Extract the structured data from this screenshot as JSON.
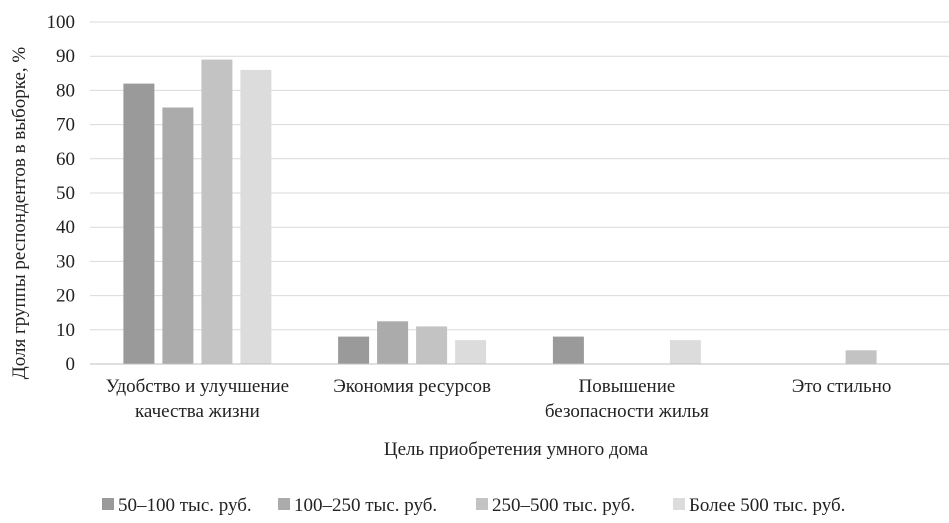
{
  "chart_data": {
    "type": "bar",
    "title": "",
    "xlabel": "Цель приобретения умного дома",
    "ylabel": "Доля группы респондентов в выборке, %",
    "ylim": [
      0,
      100
    ],
    "yticks": [
      "0",
      "10",
      "20",
      "30",
      "40",
      "50",
      "60",
      "70",
      "80",
      "90",
      "100"
    ],
    "grid": true,
    "legend_position": "bottom",
    "categories": [
      [
        "Удобство и улучшение",
        "качества жизни"
      ],
      [
        "Экономия ресурсов"
      ],
      [
        "Повышение",
        "безопасности жилья"
      ],
      [
        "Это стильно"
      ]
    ],
    "series": [
      {
        "name": "50–100 тыс. руб.",
        "color": "#9a9a9a",
        "values": [
          82,
          8,
          8,
          0
        ]
      },
      {
        "name": "100–250 тыс. руб.",
        "color": "#ababab",
        "values": [
          75,
          12.5,
          0,
          0
        ]
      },
      {
        "name": "250–500 тыс. руб.",
        "color": "#c3c3c3",
        "values": [
          89,
          11,
          0,
          4
        ]
      },
      {
        "name": "Более 500 тыс. руб.",
        "color": "#dcdcdc",
        "values": [
          86,
          7,
          7,
          0
        ]
      }
    ]
  }
}
